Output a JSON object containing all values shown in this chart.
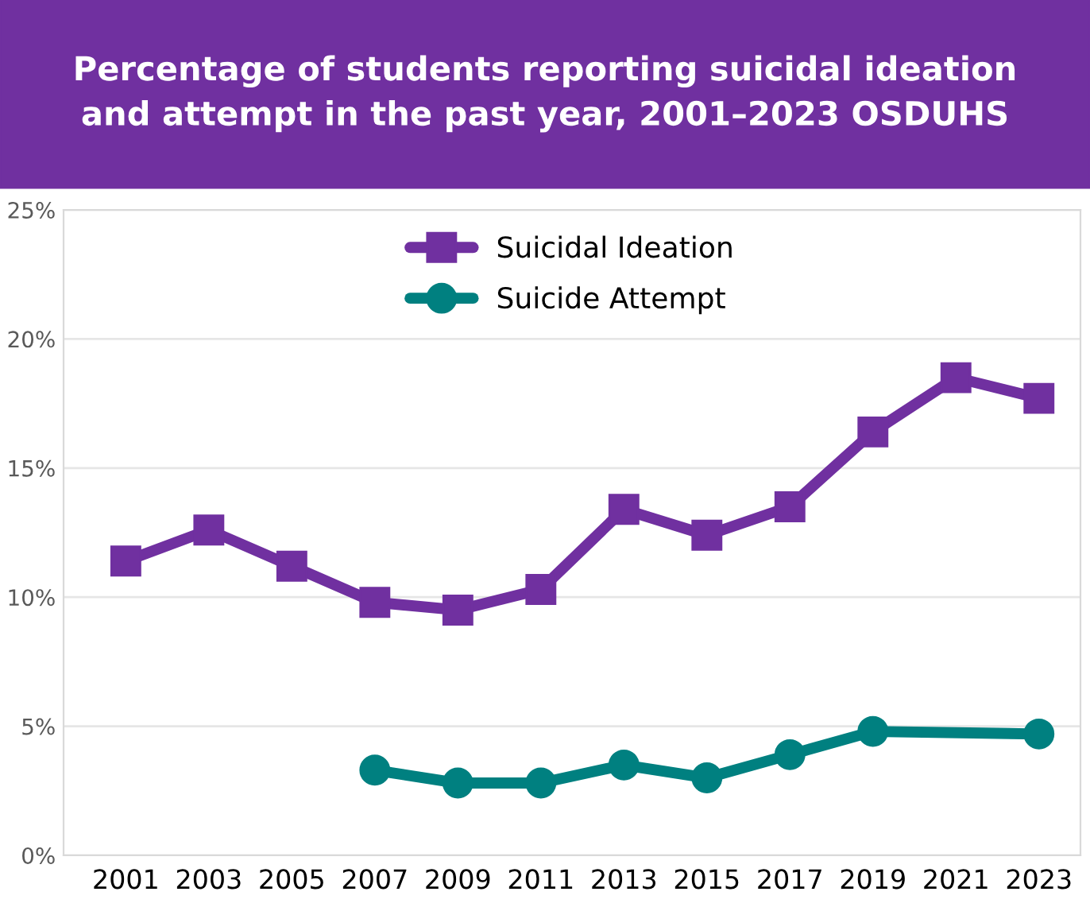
{
  "chart_data": {
    "type": "line",
    "title": "Percentage of students reporting suicidal ideation\nand attempt in the past year, 2001–2023 OSDUHS",
    "x": [
      2001,
      2003,
      2005,
      2007,
      2009,
      2011,
      2013,
      2015,
      2017,
      2019,
      2021,
      2023
    ],
    "series": [
      {
        "name": "Suicidal Ideation",
        "color": "#7030a0",
        "marker": "square",
        "values": [
          11.4,
          12.6,
          11.2,
          9.8,
          9.5,
          10.3,
          13.4,
          12.4,
          13.5,
          16.4,
          18.5,
          17.7
        ]
      },
      {
        "name": "Suicide Attempt",
        "color": "#008080",
        "marker": "circle",
        "x": [
          2007,
          2009,
          2011,
          2013,
          2015,
          2017,
          2019,
          2023
        ],
        "values": [
          3.3,
          2.8,
          2.8,
          3.5,
          3.0,
          3.9,
          4.8,
          4.7
        ]
      }
    ],
    "xlim": [
      1999.5,
      2024
    ],
    "xticks": [
      2001,
      2003,
      2005,
      2007,
      2009,
      2011,
      2013,
      2015,
      2017,
      2019,
      2021,
      2023
    ],
    "ylim": [
      0,
      25
    ],
    "yticks": [
      {
        "value": 0,
        "label": "0%"
      },
      {
        "value": 5,
        "label": "5%"
      },
      {
        "value": 10,
        "label": "10%"
      },
      {
        "value": 15,
        "label": "15%"
      },
      {
        "value": 20,
        "label": "20%"
      },
      {
        "value": 25,
        "label": "25%"
      }
    ],
    "grid": "y",
    "legend": "top",
    "line_style": "solid"
  }
}
